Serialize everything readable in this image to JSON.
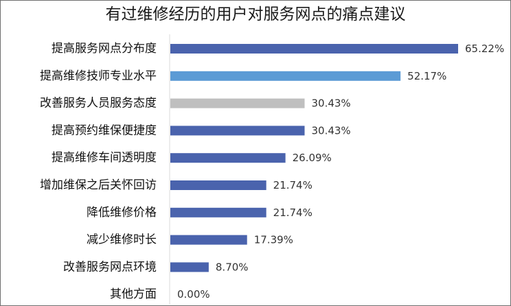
{
  "chart_data": {
    "type": "bar",
    "orientation": "horizontal",
    "title": "有过维修经历的用户对服务网点的痛点建议",
    "categories": [
      "提高服务网点分布度",
      "提高维修技师专业水平",
      "改善服务人员服务态度",
      "提高预约维保便捷度",
      "提高维修车间透明度",
      "增加维保之后关怀回访",
      "降低维修价格",
      "减少维修时长",
      "改善服务网点环境",
      "其他方面"
    ],
    "values": [
      65.22,
      52.17,
      30.43,
      30.43,
      26.09,
      21.74,
      21.74,
      17.39,
      8.7,
      0.0
    ],
    "value_labels": [
      "65.22%",
      "52.17%",
      "30.43%",
      "30.43%",
      "26.09%",
      "21.74%",
      "21.74%",
      "17.39%",
      "8.70%",
      "0.00%"
    ],
    "bar_colors": [
      "#4a63ad",
      "#5b9bd5",
      "#bfbfbf",
      "#4a63ad",
      "#4a63ad",
      "#4a63ad",
      "#4a63ad",
      "#4a63ad",
      "#4a63ad",
      "#4a63ad"
    ],
    "xlim": [
      0,
      65.22
    ],
    "axis_line_color": "#d9d9d9",
    "grid": false,
    "legend": "none",
    "xlabel": "",
    "ylabel": ""
  }
}
